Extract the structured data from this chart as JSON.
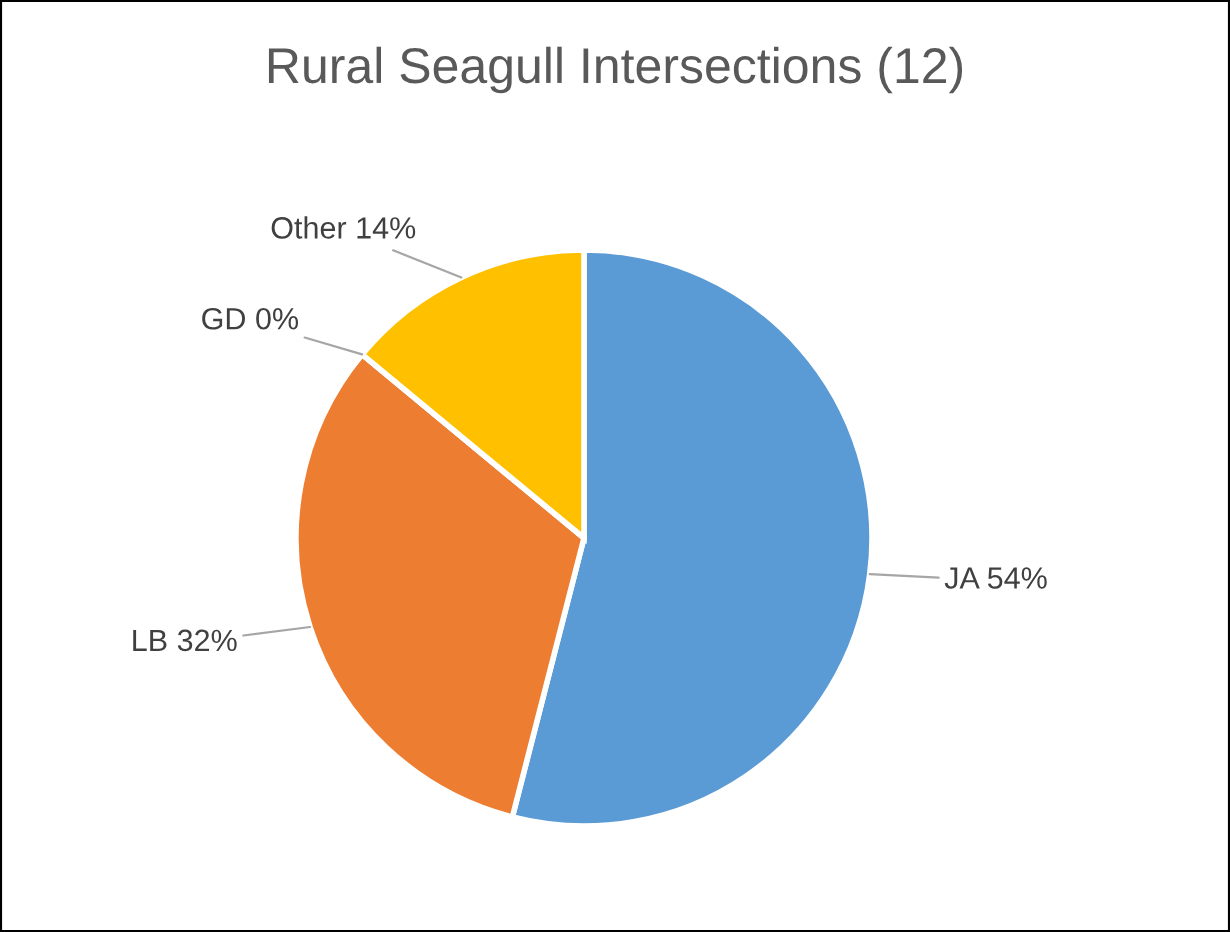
{
  "chart_data": {
    "type": "pie",
    "title": "Rural Seagull Intersections (12)",
    "categories": [
      "JA",
      "LB",
      "GD",
      "Other"
    ],
    "values": [
      54,
      32,
      0,
      14
    ],
    "value_labels": [
      "54%",
      "32%",
      "0%",
      "14%"
    ],
    "colors": [
      "#5b9bd5",
      "#ed7d31",
      "#a5a5a5",
      "#ffc000"
    ],
    "legend": false
  }
}
